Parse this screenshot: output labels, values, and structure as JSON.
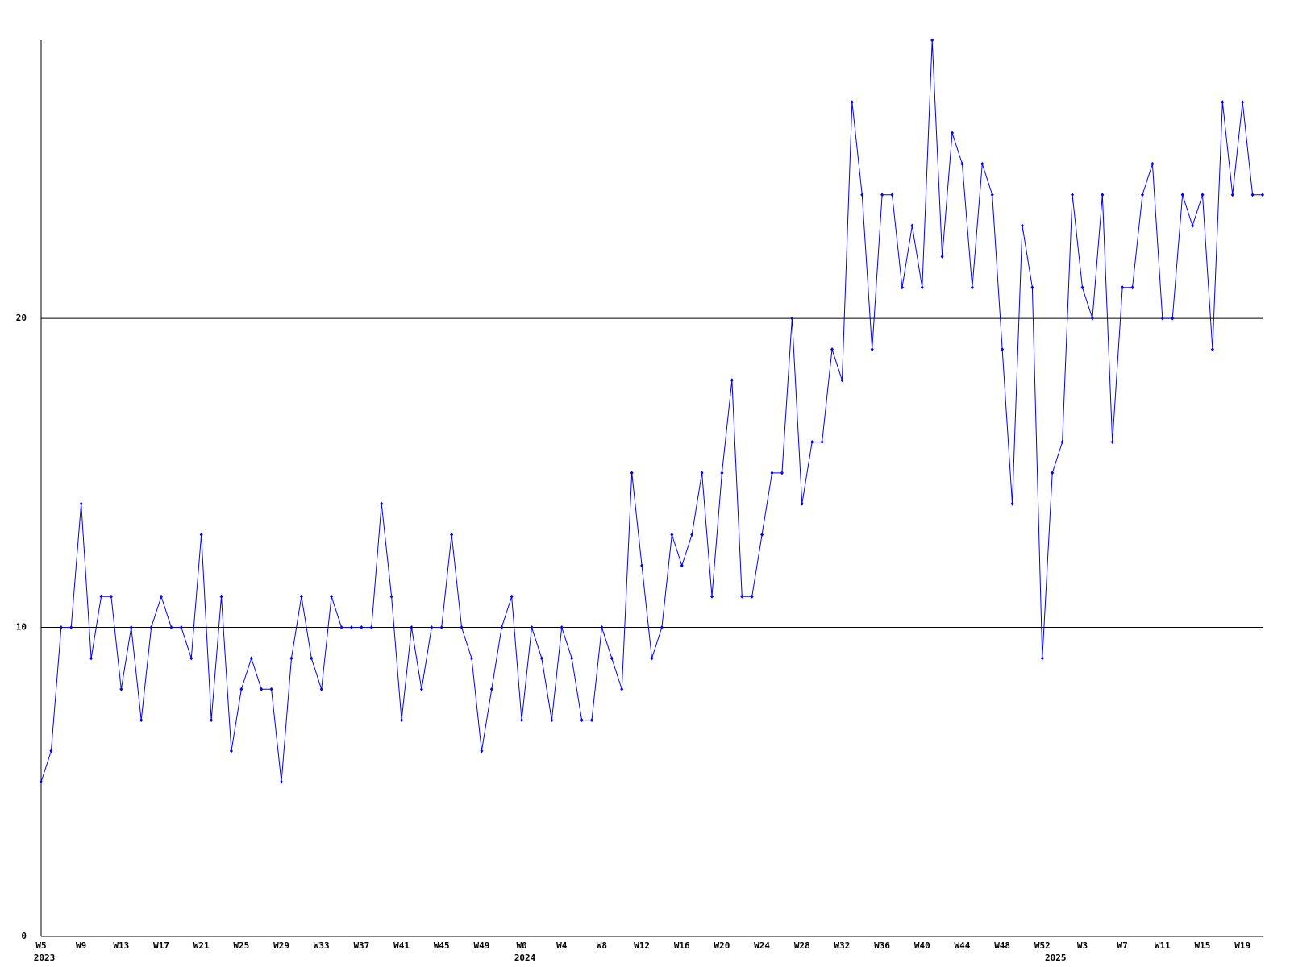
{
  "chart_data": {
    "type": "line",
    "categories": [
      "W5",
      null,
      null,
      null,
      "W9",
      null,
      null,
      null,
      "W13",
      null,
      null,
      null,
      "W17",
      null,
      null,
      null,
      "W21",
      null,
      null,
      null,
      "W25",
      null,
      null,
      null,
      "W29",
      null,
      null,
      null,
      "W33",
      null,
      null,
      null,
      "W37",
      null,
      null,
      null,
      "W41",
      null,
      null,
      null,
      "W45",
      null,
      null,
      null,
      "W49",
      null,
      null,
      null,
      "W0",
      null,
      null,
      null,
      "W4",
      null,
      null,
      null,
      "W8",
      null,
      null,
      null,
      "W12",
      null,
      null,
      null,
      "W16",
      null,
      null,
      null,
      "W20",
      null,
      null,
      null,
      "W24",
      null,
      null,
      null,
      "W28",
      null,
      null,
      null,
      "W32",
      null,
      null,
      null,
      "W36",
      null,
      null,
      null,
      "W40",
      null,
      null,
      null,
      "W44",
      null,
      null,
      null,
      "W48",
      null,
      null,
      null,
      "W52",
      null,
      null,
      null,
      "W3",
      null,
      null,
      null,
      "W7",
      null,
      null,
      null,
      "W11",
      null,
      null,
      null,
      "W15",
      null,
      null,
      null,
      "W19",
      null,
      null
    ],
    "years": [
      "2023",
      null,
      null,
      null,
      null,
      null,
      null,
      null,
      null,
      null,
      null,
      null,
      null,
      null,
      null,
      null,
      null,
      null,
      null,
      null,
      null,
      null,
      null,
      null,
      null,
      null,
      null,
      null,
      null,
      null,
      null,
      null,
      null,
      null,
      null,
      null,
      null,
      null,
      null,
      null,
      null,
      null,
      null,
      null,
      null,
      null,
      null,
      null,
      "2024",
      null,
      null,
      null,
      null,
      null,
      null,
      null,
      null,
      null,
      null,
      null,
      null,
      null,
      null,
      null,
      null,
      null,
      null,
      null,
      null,
      null,
      null,
      null,
      null,
      null,
      null,
      null,
      null,
      null,
      null,
      null,
      null,
      null,
      null,
      null,
      null,
      null,
      null,
      null,
      null,
      null,
      null,
      null,
      null,
      null,
      null,
      null,
      null,
      null,
      null,
      null,
      null,
      "2025",
      null,
      null,
      null,
      null,
      null,
      null,
      null,
      null,
      null,
      null,
      null,
      null,
      null,
      null,
      null,
      null,
      null,
      null,
      null,
      null,
      null
    ],
    "series": [
      {
        "color": "#0000ff",
        "values": [
          5,
          6,
          10,
          10,
          14,
          9,
          11,
          11,
          8,
          10,
          7,
          10,
          11,
          10,
          10,
          9,
          13,
          7,
          11,
          6,
          8,
          9,
          8,
          8,
          5,
          9,
          11,
          9,
          8,
          11,
          10,
          10,
          10,
          10,
          14,
          11,
          7,
          10,
          8,
          10,
          10,
          13,
          10,
          9,
          6,
          8,
          10,
          11,
          7,
          10,
          9,
          7,
          10,
          9,
          7,
          7,
          10,
          9,
          8,
          15,
          12,
          9,
          10,
          13,
          12,
          13,
          15,
          11,
          15,
          18,
          11,
          11,
          13,
          15,
          15,
          20,
          14,
          16,
          16,
          19,
          18,
          27,
          24,
          19,
          24,
          24,
          21,
          23,
          21,
          29,
          22,
          26,
          25,
          21,
          25,
          24,
          19,
          14,
          23,
          21,
          9,
          15,
          16,
          24,
          21,
          20,
          24,
          16,
          21,
          21,
          24,
          25,
          20,
          20,
          24,
          23,
          24,
          19,
          27,
          24,
          27,
          24,
          24
        ]
      }
    ],
    "ylim": [
      0,
      29
    ],
    "yticks": [
      0,
      10,
      20
    ],
    "grid": true
  }
}
